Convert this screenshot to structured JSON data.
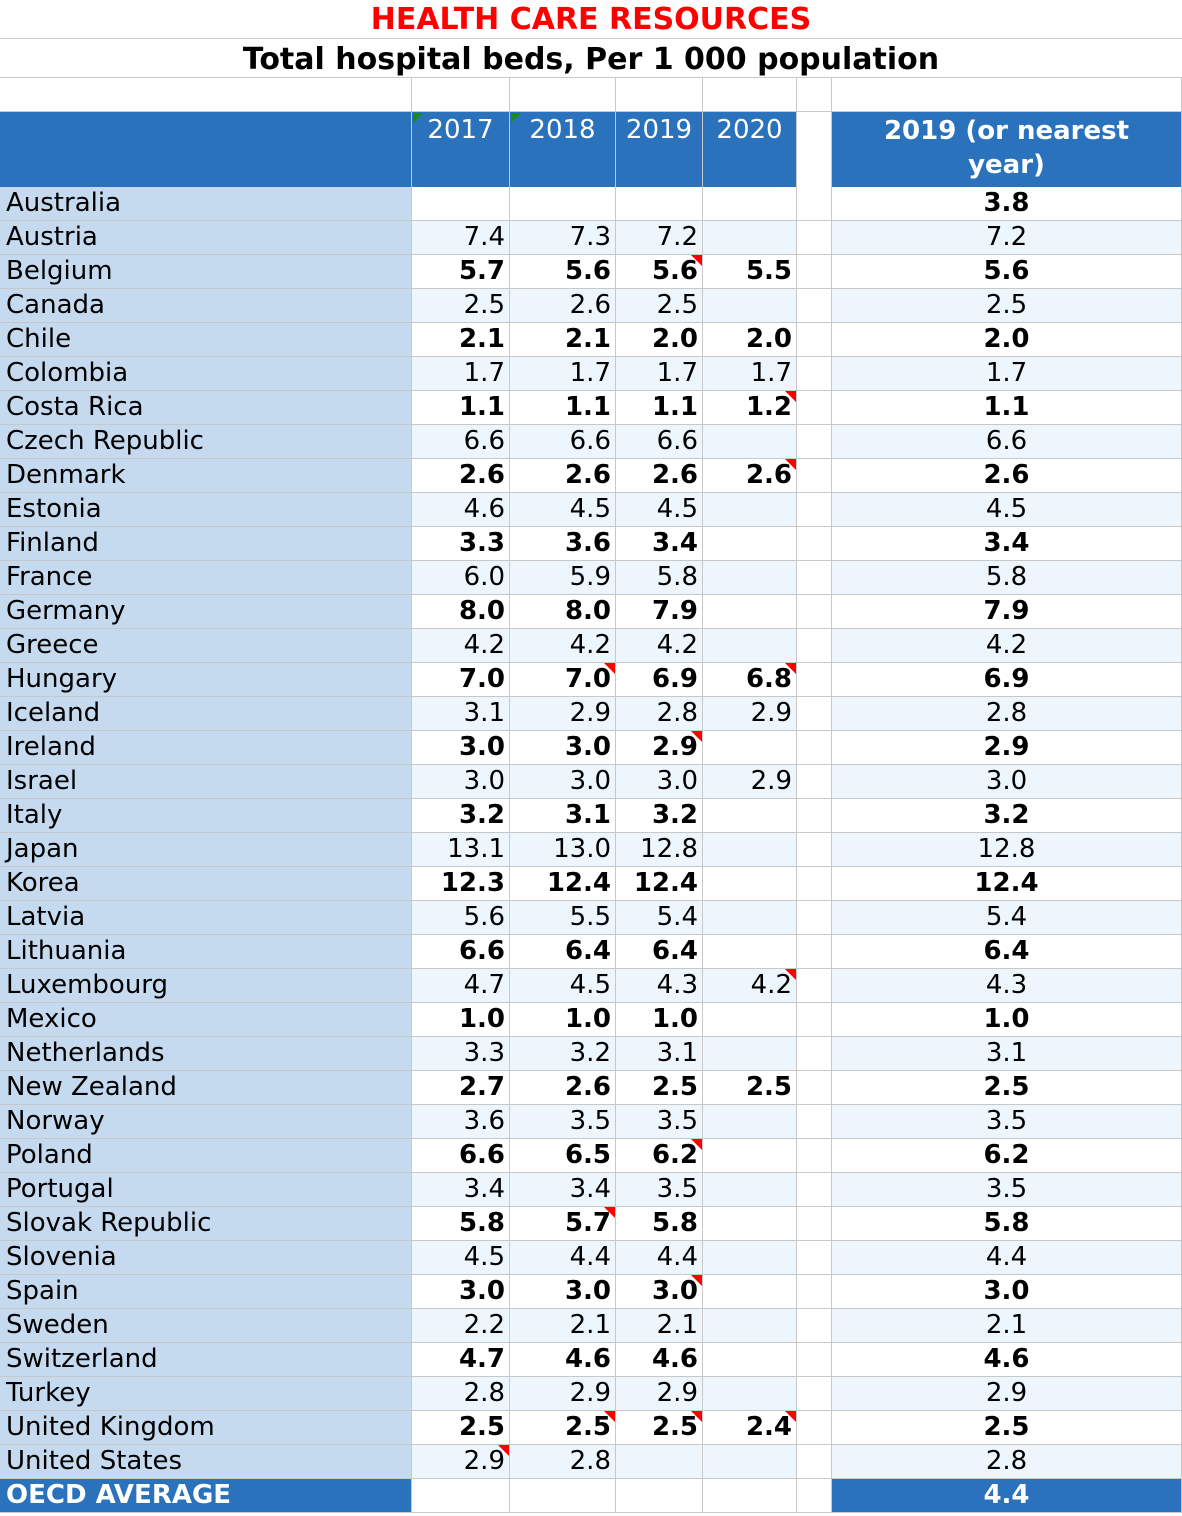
{
  "title": "HEALTH CARE RESOURCES",
  "subtitle": "Total hospital beds, Per 1 000 population",
  "colors": {
    "title": "#ff0000",
    "header": "#2a72bc",
    "country_column": "#c5d9ef",
    "stripe": "#eef6fd",
    "comment_marker": "#ff0000",
    "note_marker": "#1a8a1a"
  },
  "header": {
    "years": [
      "2017",
      "2018",
      "2019",
      "2020"
    ],
    "latest": "2019 (or nearest year)",
    "note_markers": [
      0,
      1
    ]
  },
  "rows": [
    {
      "country": "Australia",
      "values": [
        "",
        "",
        "",
        ""
      ],
      "latest": "3.8",
      "comments": []
    },
    {
      "country": "Austria",
      "values": [
        "7.4",
        "7.3",
        "7.2",
        ""
      ],
      "latest": "7.2",
      "comments": []
    },
    {
      "country": "Belgium",
      "values": [
        "5.7",
        "5.6",
        "5.6",
        "5.5"
      ],
      "latest": "5.6",
      "comments": [
        2
      ]
    },
    {
      "country": "Canada",
      "values": [
        "2.5",
        "2.6",
        "2.5",
        ""
      ],
      "latest": "2.5",
      "comments": []
    },
    {
      "country": "Chile",
      "values": [
        "2.1",
        "2.1",
        "2.0",
        "2.0"
      ],
      "latest": "2.0",
      "comments": []
    },
    {
      "country": "Colombia",
      "values": [
        "1.7",
        "1.7",
        "1.7",
        "1.7"
      ],
      "latest": "1.7",
      "comments": []
    },
    {
      "country": "Costa Rica",
      "values": [
        "1.1",
        "1.1",
        "1.1",
        "1.2"
      ],
      "latest": "1.1",
      "comments": [
        3
      ]
    },
    {
      "country": "Czech Republic",
      "values": [
        "6.6",
        "6.6",
        "6.6",
        ""
      ],
      "latest": "6.6",
      "comments": []
    },
    {
      "country": "Denmark",
      "values": [
        "2.6",
        "2.6",
        "2.6",
        "2.6"
      ],
      "latest": "2.6",
      "comments": [
        3
      ]
    },
    {
      "country": "Estonia",
      "values": [
        "4.6",
        "4.5",
        "4.5",
        ""
      ],
      "latest": "4.5",
      "comments": []
    },
    {
      "country": "Finland",
      "values": [
        "3.3",
        "3.6",
        "3.4",
        ""
      ],
      "latest": "3.4",
      "comments": []
    },
    {
      "country": "France",
      "values": [
        "6.0",
        "5.9",
        "5.8",
        ""
      ],
      "latest": "5.8",
      "comments": []
    },
    {
      "country": "Germany",
      "values": [
        "8.0",
        "8.0",
        "7.9",
        ""
      ],
      "latest": "7.9",
      "comments": []
    },
    {
      "country": "Greece",
      "values": [
        "4.2",
        "4.2",
        "4.2",
        ""
      ],
      "latest": "4.2",
      "comments": []
    },
    {
      "country": "Hungary",
      "values": [
        "7.0",
        "7.0",
        "6.9",
        "6.8"
      ],
      "latest": "6.9",
      "comments": [
        1,
        3
      ]
    },
    {
      "country": "Iceland",
      "values": [
        "3.1",
        "2.9",
        "2.8",
        "2.9"
      ],
      "latest": "2.8",
      "comments": []
    },
    {
      "country": "Ireland",
      "values": [
        "3.0",
        "3.0",
        "2.9",
        ""
      ],
      "latest": "2.9",
      "comments": [
        2
      ]
    },
    {
      "country": "Israel",
      "values": [
        "3.0",
        "3.0",
        "3.0",
        "2.9"
      ],
      "latest": "3.0",
      "comments": []
    },
    {
      "country": "Italy",
      "values": [
        "3.2",
        "3.1",
        "3.2",
        ""
      ],
      "latest": "3.2",
      "comments": []
    },
    {
      "country": "Japan",
      "values": [
        "13.1",
        "13.0",
        "12.8",
        ""
      ],
      "latest": "12.8",
      "comments": []
    },
    {
      "country": "Korea",
      "values": [
        "12.3",
        "12.4",
        "12.4",
        ""
      ],
      "latest": "12.4",
      "comments": []
    },
    {
      "country": "Latvia",
      "values": [
        "5.6",
        "5.5",
        "5.4",
        ""
      ],
      "latest": "5.4",
      "comments": []
    },
    {
      "country": "Lithuania",
      "values": [
        "6.6",
        "6.4",
        "6.4",
        ""
      ],
      "latest": "6.4",
      "comments": []
    },
    {
      "country": "Luxembourg",
      "values": [
        "4.7",
        "4.5",
        "4.3",
        "4.2"
      ],
      "latest": "4.3",
      "comments": [
        3
      ]
    },
    {
      "country": "Mexico",
      "values": [
        "1.0",
        "1.0",
        "1.0",
        ""
      ],
      "latest": "1.0",
      "comments": []
    },
    {
      "country": "Netherlands",
      "values": [
        "3.3",
        "3.2",
        "3.1",
        ""
      ],
      "latest": "3.1",
      "comments": []
    },
    {
      "country": "New Zealand",
      "values": [
        "2.7",
        "2.6",
        "2.5",
        "2.5"
      ],
      "latest": "2.5",
      "comments": []
    },
    {
      "country": "Norway",
      "values": [
        "3.6",
        "3.5",
        "3.5",
        ""
      ],
      "latest": "3.5",
      "comments": []
    },
    {
      "country": "Poland",
      "values": [
        "6.6",
        "6.5",
        "6.2",
        ""
      ],
      "latest": "6.2",
      "comments": [
        2
      ]
    },
    {
      "country": "Portugal",
      "values": [
        "3.4",
        "3.4",
        "3.5",
        ""
      ],
      "latest": "3.5",
      "comments": []
    },
    {
      "country": "Slovak Republic",
      "values": [
        "5.8",
        "5.7",
        "5.8",
        ""
      ],
      "latest": "5.8",
      "comments": [
        1
      ]
    },
    {
      "country": "Slovenia",
      "values": [
        "4.5",
        "4.4",
        "4.4",
        ""
      ],
      "latest": "4.4",
      "comments": []
    },
    {
      "country": "Spain",
      "values": [
        "3.0",
        "3.0",
        "3.0",
        ""
      ],
      "latest": "3.0",
      "comments": [
        2
      ]
    },
    {
      "country": "Sweden",
      "values": [
        "2.2",
        "2.1",
        "2.1",
        ""
      ],
      "latest": "2.1",
      "comments": []
    },
    {
      "country": "Switzerland",
      "values": [
        "4.7",
        "4.6",
        "4.6",
        ""
      ],
      "latest": "4.6",
      "comments": []
    },
    {
      "country": "Turkey",
      "values": [
        "2.8",
        "2.9",
        "2.9",
        ""
      ],
      "latest": "2.9",
      "comments": []
    },
    {
      "country": "United Kingdom",
      "values": [
        "2.5",
        "2.5",
        "2.5",
        "2.4"
      ],
      "latest": "2.5",
      "comments": [
        1,
        2,
        3
      ]
    },
    {
      "country": "United States",
      "values": [
        "2.9",
        "2.8",
        "",
        ""
      ],
      "latest": "2.8",
      "comments": [
        0
      ]
    }
  ],
  "average": {
    "label": "OECD AVERAGE",
    "latest": "4.4"
  }
}
